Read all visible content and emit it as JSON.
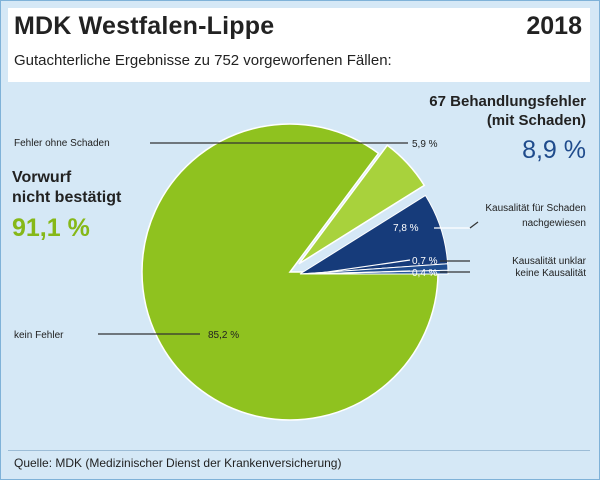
{
  "header": {
    "title": "MDK Westfalen-Lippe",
    "year": "2018",
    "subtitle": "Gutachterliche Ergebnisse zu 752 vorgeworfenen Fällen:"
  },
  "footer": {
    "source": "Quelle: MDK (Medizinischer Dienst der Krankenversicherung)"
  },
  "chart_data": {
    "type": "pie",
    "title": "MDK Westfalen-Lippe",
    "subtitle": "Gutachterliche Ergebnisse zu 752 vorgeworfenen Fällen:",
    "total_cases": 752,
    "slices": [
      {
        "label": "kein Fehler",
        "value": 85.2,
        "value_label": "85,2 %",
        "color": "#8fc21f",
        "group": "Vorwurf nicht bestätigt"
      },
      {
        "label": "Fehler ohne Schaden",
        "value": 5.9,
        "value_label": "5,9 %",
        "color": "#a8d23c",
        "group": "Vorwurf nicht bestätigt",
        "exploded": true
      },
      {
        "label": "Kausalität für Schaden nachgewiesen",
        "value": 7.8,
        "value_label": "7,8 %",
        "color": "#163b7a",
        "group": "Behandlungsfehler mit Schaden",
        "exploded": true
      },
      {
        "label": "Kausalität unklar",
        "value": 0.7,
        "value_label": "0,7 %",
        "color": "#1f4d8f",
        "group": "Behandlungsfehler mit Schaden",
        "exploded": true
      },
      {
        "label": "keine Kausalität",
        "value": 0.4,
        "value_label": "0,4 %",
        "color": "#2a5a9c",
        "group": "Behandlungsfehler mit Schaden",
        "exploded": true
      }
    ],
    "groups": [
      {
        "label_line1": "Vorwurf",
        "label_line2": "nicht bestätigt",
        "value_label": "91,1 %",
        "color": "#86b818"
      },
      {
        "label_line1": "67 Behandlungsfehler",
        "label_line2": "(mit Schaden)",
        "value_label": "8,9 %",
        "color": "#1f4b8c"
      }
    ]
  }
}
